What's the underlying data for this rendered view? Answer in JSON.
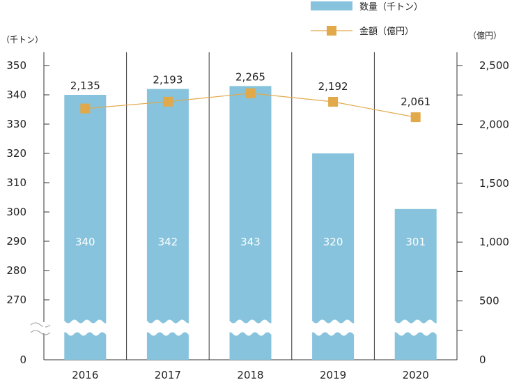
{
  "chart_data": {
    "type": "bar",
    "categories": [
      "2016",
      "2017",
      "2018",
      "2019",
      "2020"
    ],
    "series": [
      {
        "name": "数量（千トン）",
        "kind": "bar",
        "axis": "left",
        "values": [
          340,
          342,
          343,
          320,
          301
        ],
        "color": "#87c3dc"
      },
      {
        "name": "金額（億円）",
        "kind": "line",
        "axis": "right",
        "values": [
          2135,
          2193,
          2265,
          2192,
          2061
        ],
        "color": "#e2a94a"
      }
    ],
    "bar_labels": [
      "340",
      "342",
      "343",
      "320",
      "301"
    ],
    "line_labels": [
      "2,135",
      "2,193",
      "2,265",
      "2,192",
      "2,061"
    ],
    "left_axis": {
      "unit": "（千トン）",
      "ticks": [
        "0",
        "270",
        "280",
        "290",
        "300",
        "310",
        "320",
        "330",
        "340",
        "350"
      ],
      "ylim": [
        260,
        355
      ],
      "broken": true
    },
    "right_axis": {
      "unit": "（億円）",
      "ticks": [
        "0",
        "500",
        "1,000",
        "1,500",
        "2,000",
        "2,500"
      ],
      "ylim": [
        0,
        2500
      ]
    },
    "legend_position": "top-right",
    "grid": false
  }
}
